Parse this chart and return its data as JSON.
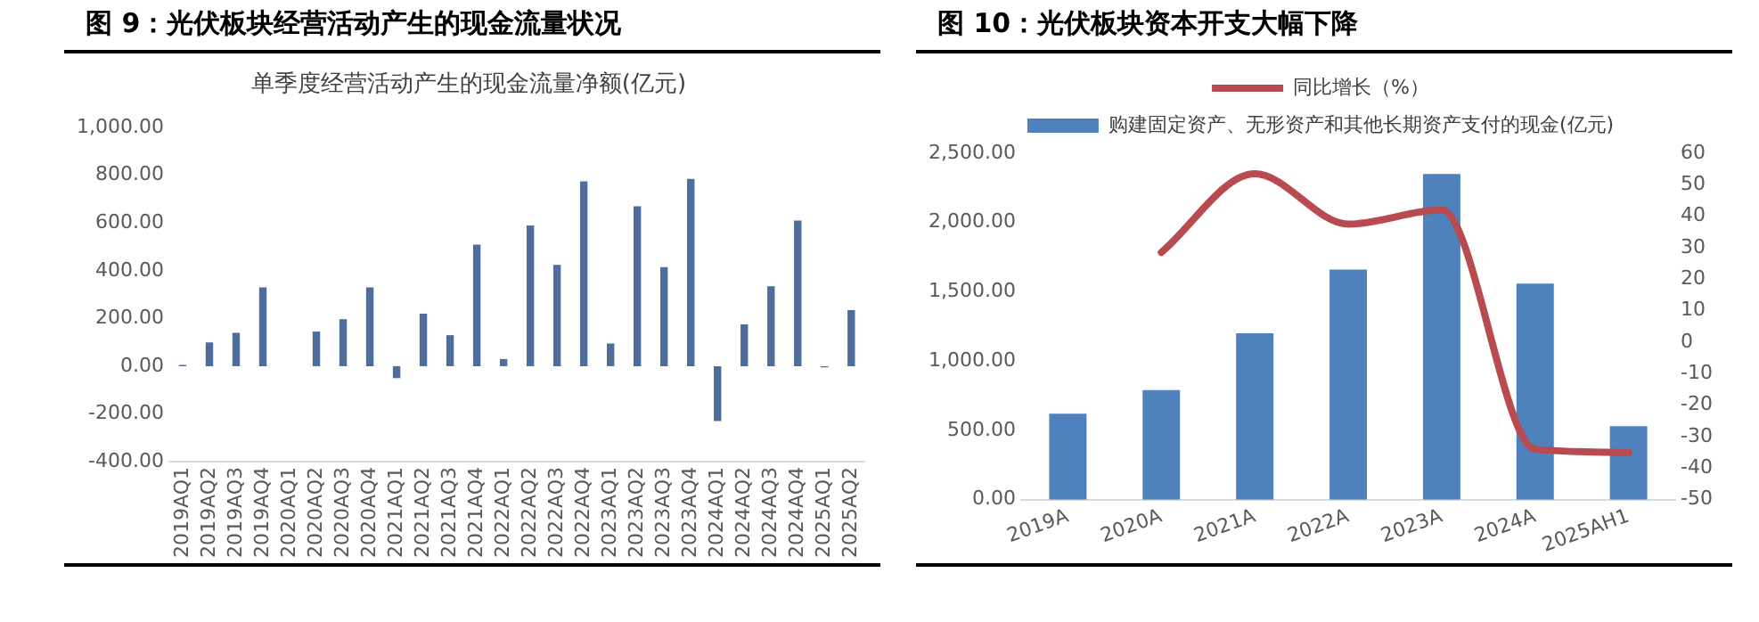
{
  "chart_data": [
    {
      "type": "bar",
      "title": "图 9：光伏板块经营活动产生的现金流量状况",
      "subtitle": "单季度经营活动产生的现金流量净额(亿元)",
      "categories": [
        "2019AQ1",
        "2019AQ2",
        "2019AQ3",
        "2019AQ4",
        "2020AQ1",
        "2020AQ2",
        "2020AQ3",
        "2020AQ4",
        "2021AQ1",
        "2021AQ2",
        "2021AQ3",
        "2021AQ4",
        "2022AQ1",
        "2022AQ2",
        "2022AQ3",
        "2022AQ4",
        "2023AQ1",
        "2023AQ2",
        "2023AQ3",
        "2023AQ4",
        "2024AQ1",
        "2024AQ2",
        "2024AQ3",
        "2024AQ4",
        "2025AQ1",
        "2025AQ2"
      ],
      "series": [
        {
          "color": "#4e6d9a",
          "values": [
            5,
            100,
            140,
            330,
            0,
            145,
            197,
            330,
            -50,
            220,
            130,
            510,
            30,
            590,
            425,
            775,
            95,
            670,
            415,
            785,
            -230,
            175,
            335,
            610,
            -5,
            235
          ]
        }
      ],
      "ylim": [
        -400,
        1000
      ],
      "yticks": [
        {
          "value": -400,
          "label": "-400.00"
        },
        {
          "value": -200,
          "label": "-200.00"
        },
        {
          "value": 0,
          "label": "0.00"
        },
        {
          "value": 200,
          "label": "200.00"
        },
        {
          "value": 400,
          "label": "400.00"
        },
        {
          "value": 600,
          "label": "600.00"
        },
        {
          "value": 800,
          "label": "800.00"
        },
        {
          "value": 1000,
          "label": "1,000.00"
        }
      ],
      "grid": false,
      "legend": false
    },
    {
      "type": "bar",
      "title": "图 10：光伏板块资本开支大幅下降",
      "categories": [
        "2019A",
        "2020A",
        "2021A",
        "2022A",
        "2023A",
        "2024A",
        "2025AH1"
      ],
      "series": [
        {
          "name": "购建固定资产、无形资产和其他长期资产支付的现金(亿元)",
          "color": "#4f81bd",
          "values": [
            620,
            790,
            1200,
            1660,
            2350,
            1560,
            530
          ]
        },
        {
          "name": "同比增长（%）",
          "type": "line",
          "axis": "y2",
          "color": "#b84b4f",
          "values": [
            null,
            28.5,
            53.5,
            37.5,
            42,
            -34,
            -35
          ]
        }
      ],
      "ylim": [
        0,
        2500
      ],
      "yticks": [
        {
          "value": 0,
          "label": "0.00"
        },
        {
          "value": 500,
          "label": "500.00"
        },
        {
          "value": 1000,
          "label": "1,000.00"
        },
        {
          "value": 1500,
          "label": "1,500.00"
        },
        {
          "value": 2000,
          "label": "2,000.00"
        },
        {
          "value": 2500,
          "label": "2,500.00"
        }
      ],
      "y2lim": [
        -50,
        60
      ],
      "y2ticks": [
        -50,
        -40,
        -30,
        -20,
        -10,
        0,
        10,
        20,
        30,
        40,
        50,
        60
      ],
      "grid": false,
      "legend": "top",
      "marker": "none"
    }
  ]
}
